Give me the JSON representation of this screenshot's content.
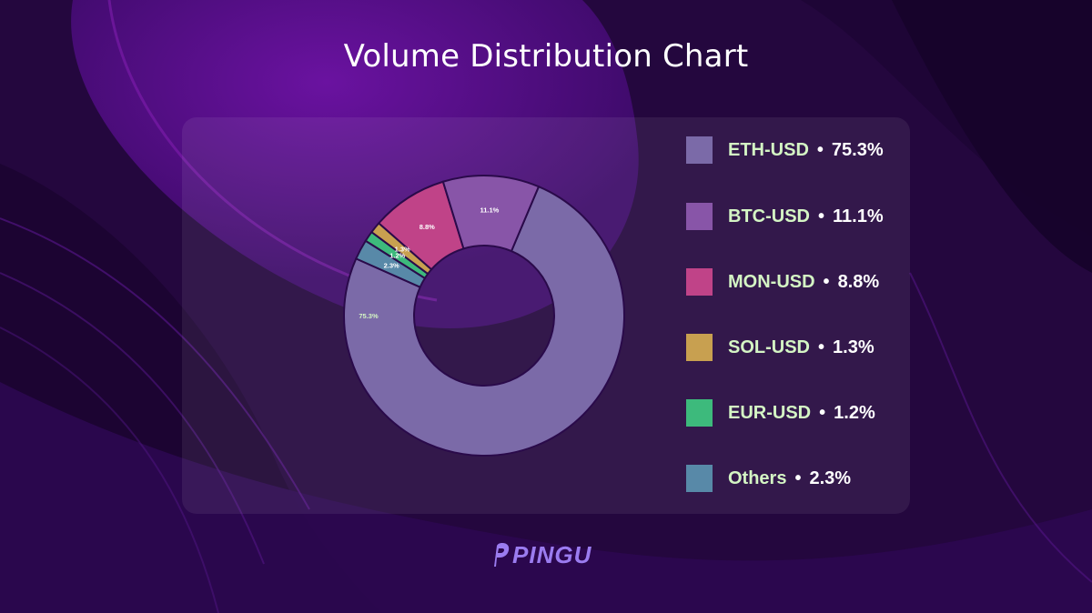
{
  "title": "Volume Distribution Chart",
  "logo": {
    "text": "PINGU",
    "color": "#9b7cf0"
  },
  "colors": {
    "background": "#2a0a4a",
    "legend_text": "#d4f5c4",
    "percent_text": "#ffffff"
  },
  "chart_data": {
    "type": "pie",
    "title": "Volume Distribution Chart",
    "donut": true,
    "legend_position": "right",
    "slices": [
      {
        "label": "ETH-USD",
        "value": 75.3,
        "display": "75.3%",
        "color": "#7b6aa8"
      },
      {
        "label": "BTC-USD",
        "value": 11.1,
        "display": "11.1%",
        "color": "#8855a8"
      },
      {
        "label": "MON-USD",
        "value": 8.8,
        "display": "8.8%",
        "color": "#c04388"
      },
      {
        "label": "SOL-USD",
        "value": 1.3,
        "display": "1.3%",
        "color": "#c8a050"
      },
      {
        "label": "EUR-USD",
        "value": 1.2,
        "display": "1.2%",
        "color": "#3dba7c"
      },
      {
        "label": "Others",
        "value": 2.3,
        "display": "2.3%",
        "color": "#5889a8"
      }
    ]
  }
}
